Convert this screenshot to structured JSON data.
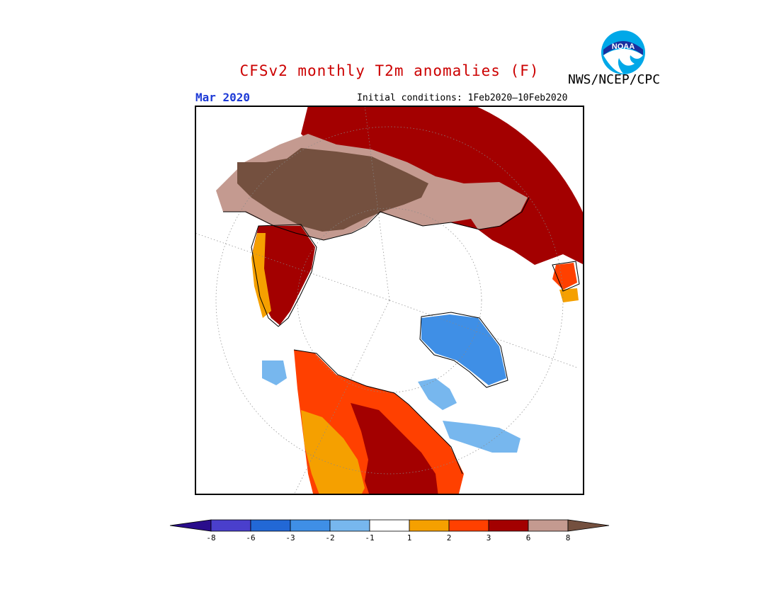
{
  "title": "CFSv2 monthly T2m anomalies (F)",
  "valid_month": "Mar 2020",
  "initial_conditions": "Initial conditions: 1Feb2020–10Feb2020",
  "agency": "NWS/NCEP/CPC",
  "logo": {
    "icon": "noaa-logo-icon",
    "text": "NOAA",
    "colors": {
      "outer": "#00a8e8",
      "inner": "#ffffff",
      "band": "#1a2f9e"
    }
  },
  "colorbar": {
    "labels": [
      "-8",
      "-6",
      "-3",
      "-2",
      "-1",
      "1",
      "2",
      "3",
      "6",
      "8"
    ],
    "colors": [
      "#2a0d8c",
      "#4a3fcc",
      "#2268d6",
      "#3f8fe6",
      "#77b7ee",
      "#ffffff",
      "#f5a000",
      "#ff4000",
      "#a30000",
      "#c49a90",
      "#74503f"
    ]
  },
  "map": {
    "projection": "north-polar-stereographic",
    "region_colors": {
      "strong_warm_europe": "#a30000",
      "brown_asia": "#74503f",
      "tan_asia": "#c49a90",
      "warm_greenland": "#a30000",
      "orange": "#f5a000",
      "red_orange": "#ff4000",
      "cool_canada": "#3f8fe6",
      "light_cool": "#77b7ee"
    }
  }
}
